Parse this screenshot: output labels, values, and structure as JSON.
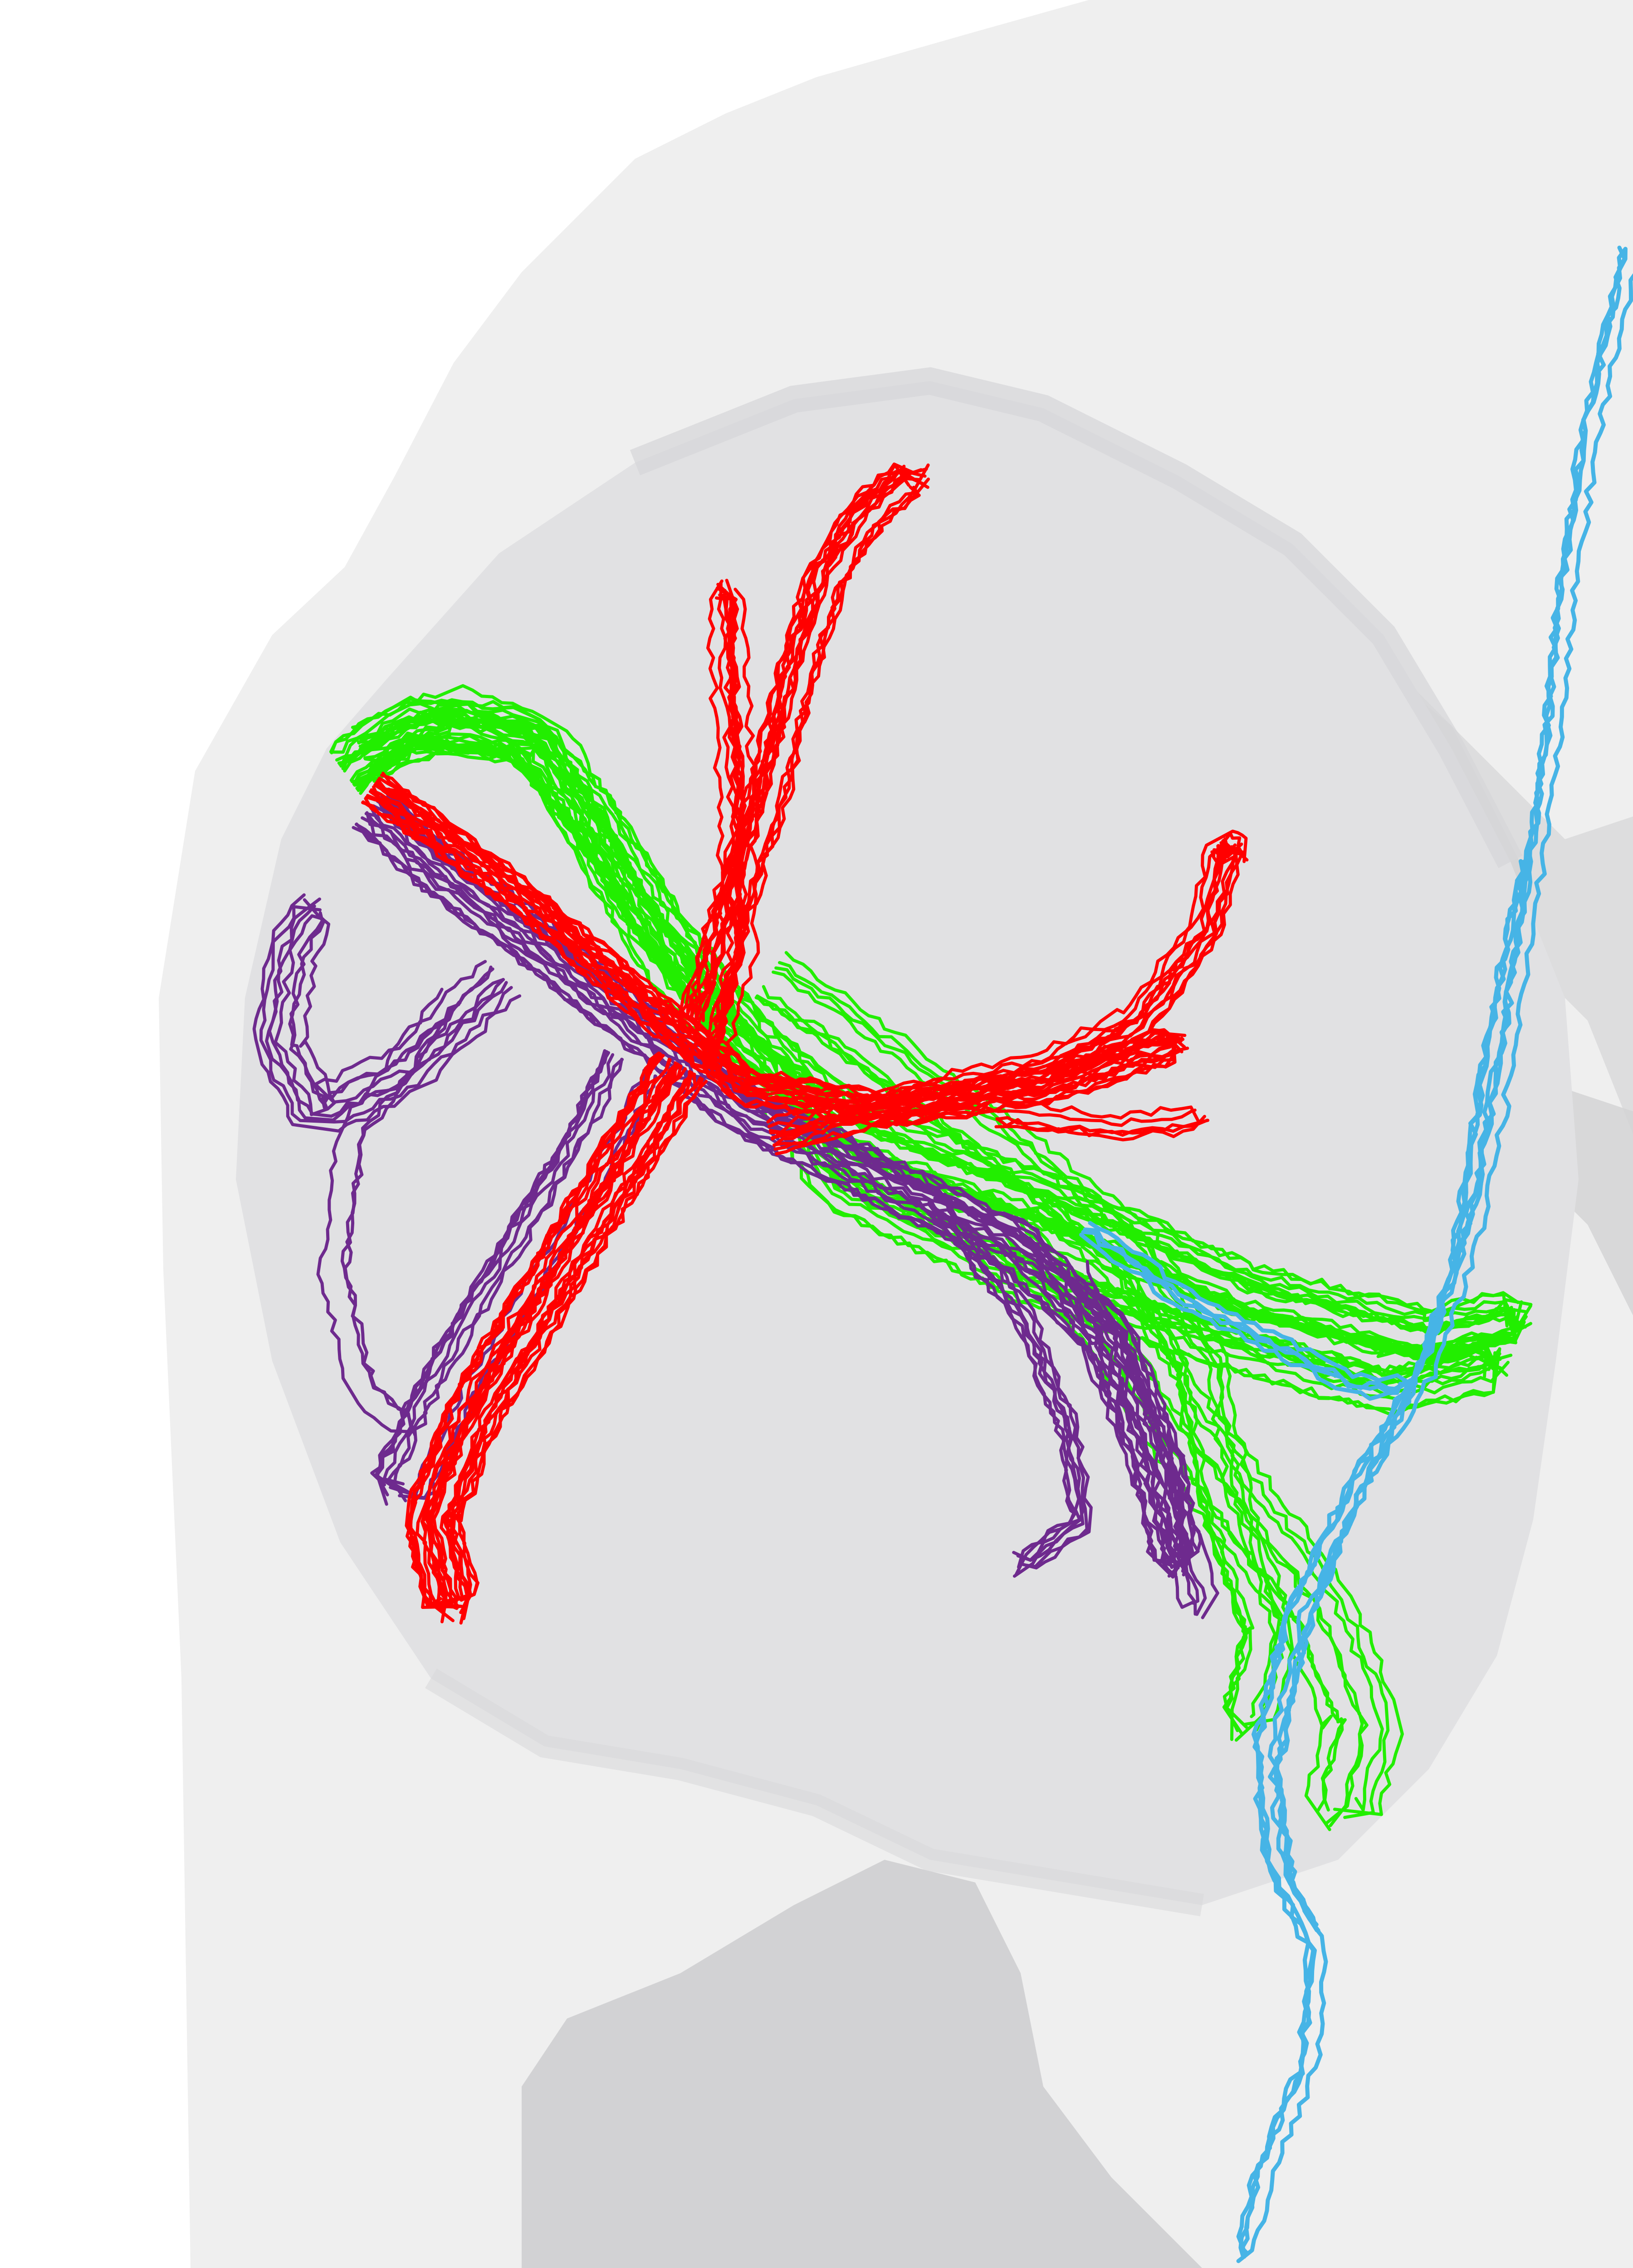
{
  "scene": {
    "type": "3d-tractography-render",
    "background_color": "#ffffff",
    "outer_surface_color": "#efefef",
    "inner_surface_color": "#e1e1e3",
    "fold_shadow_color": "#d2d2d4"
  },
  "tracts": [
    {
      "id": "green",
      "icon": "fiber-bundle-icon",
      "color": "#22ee00"
    },
    {
      "id": "purple",
      "icon": "fiber-bundle-icon",
      "color": "#6e2a8e"
    },
    {
      "id": "red",
      "icon": "fiber-bundle-icon",
      "color": "#ff0000"
    },
    {
      "id": "blue",
      "icon": "fiber-bundle-icon",
      "color": "#46b4e6"
    }
  ]
}
